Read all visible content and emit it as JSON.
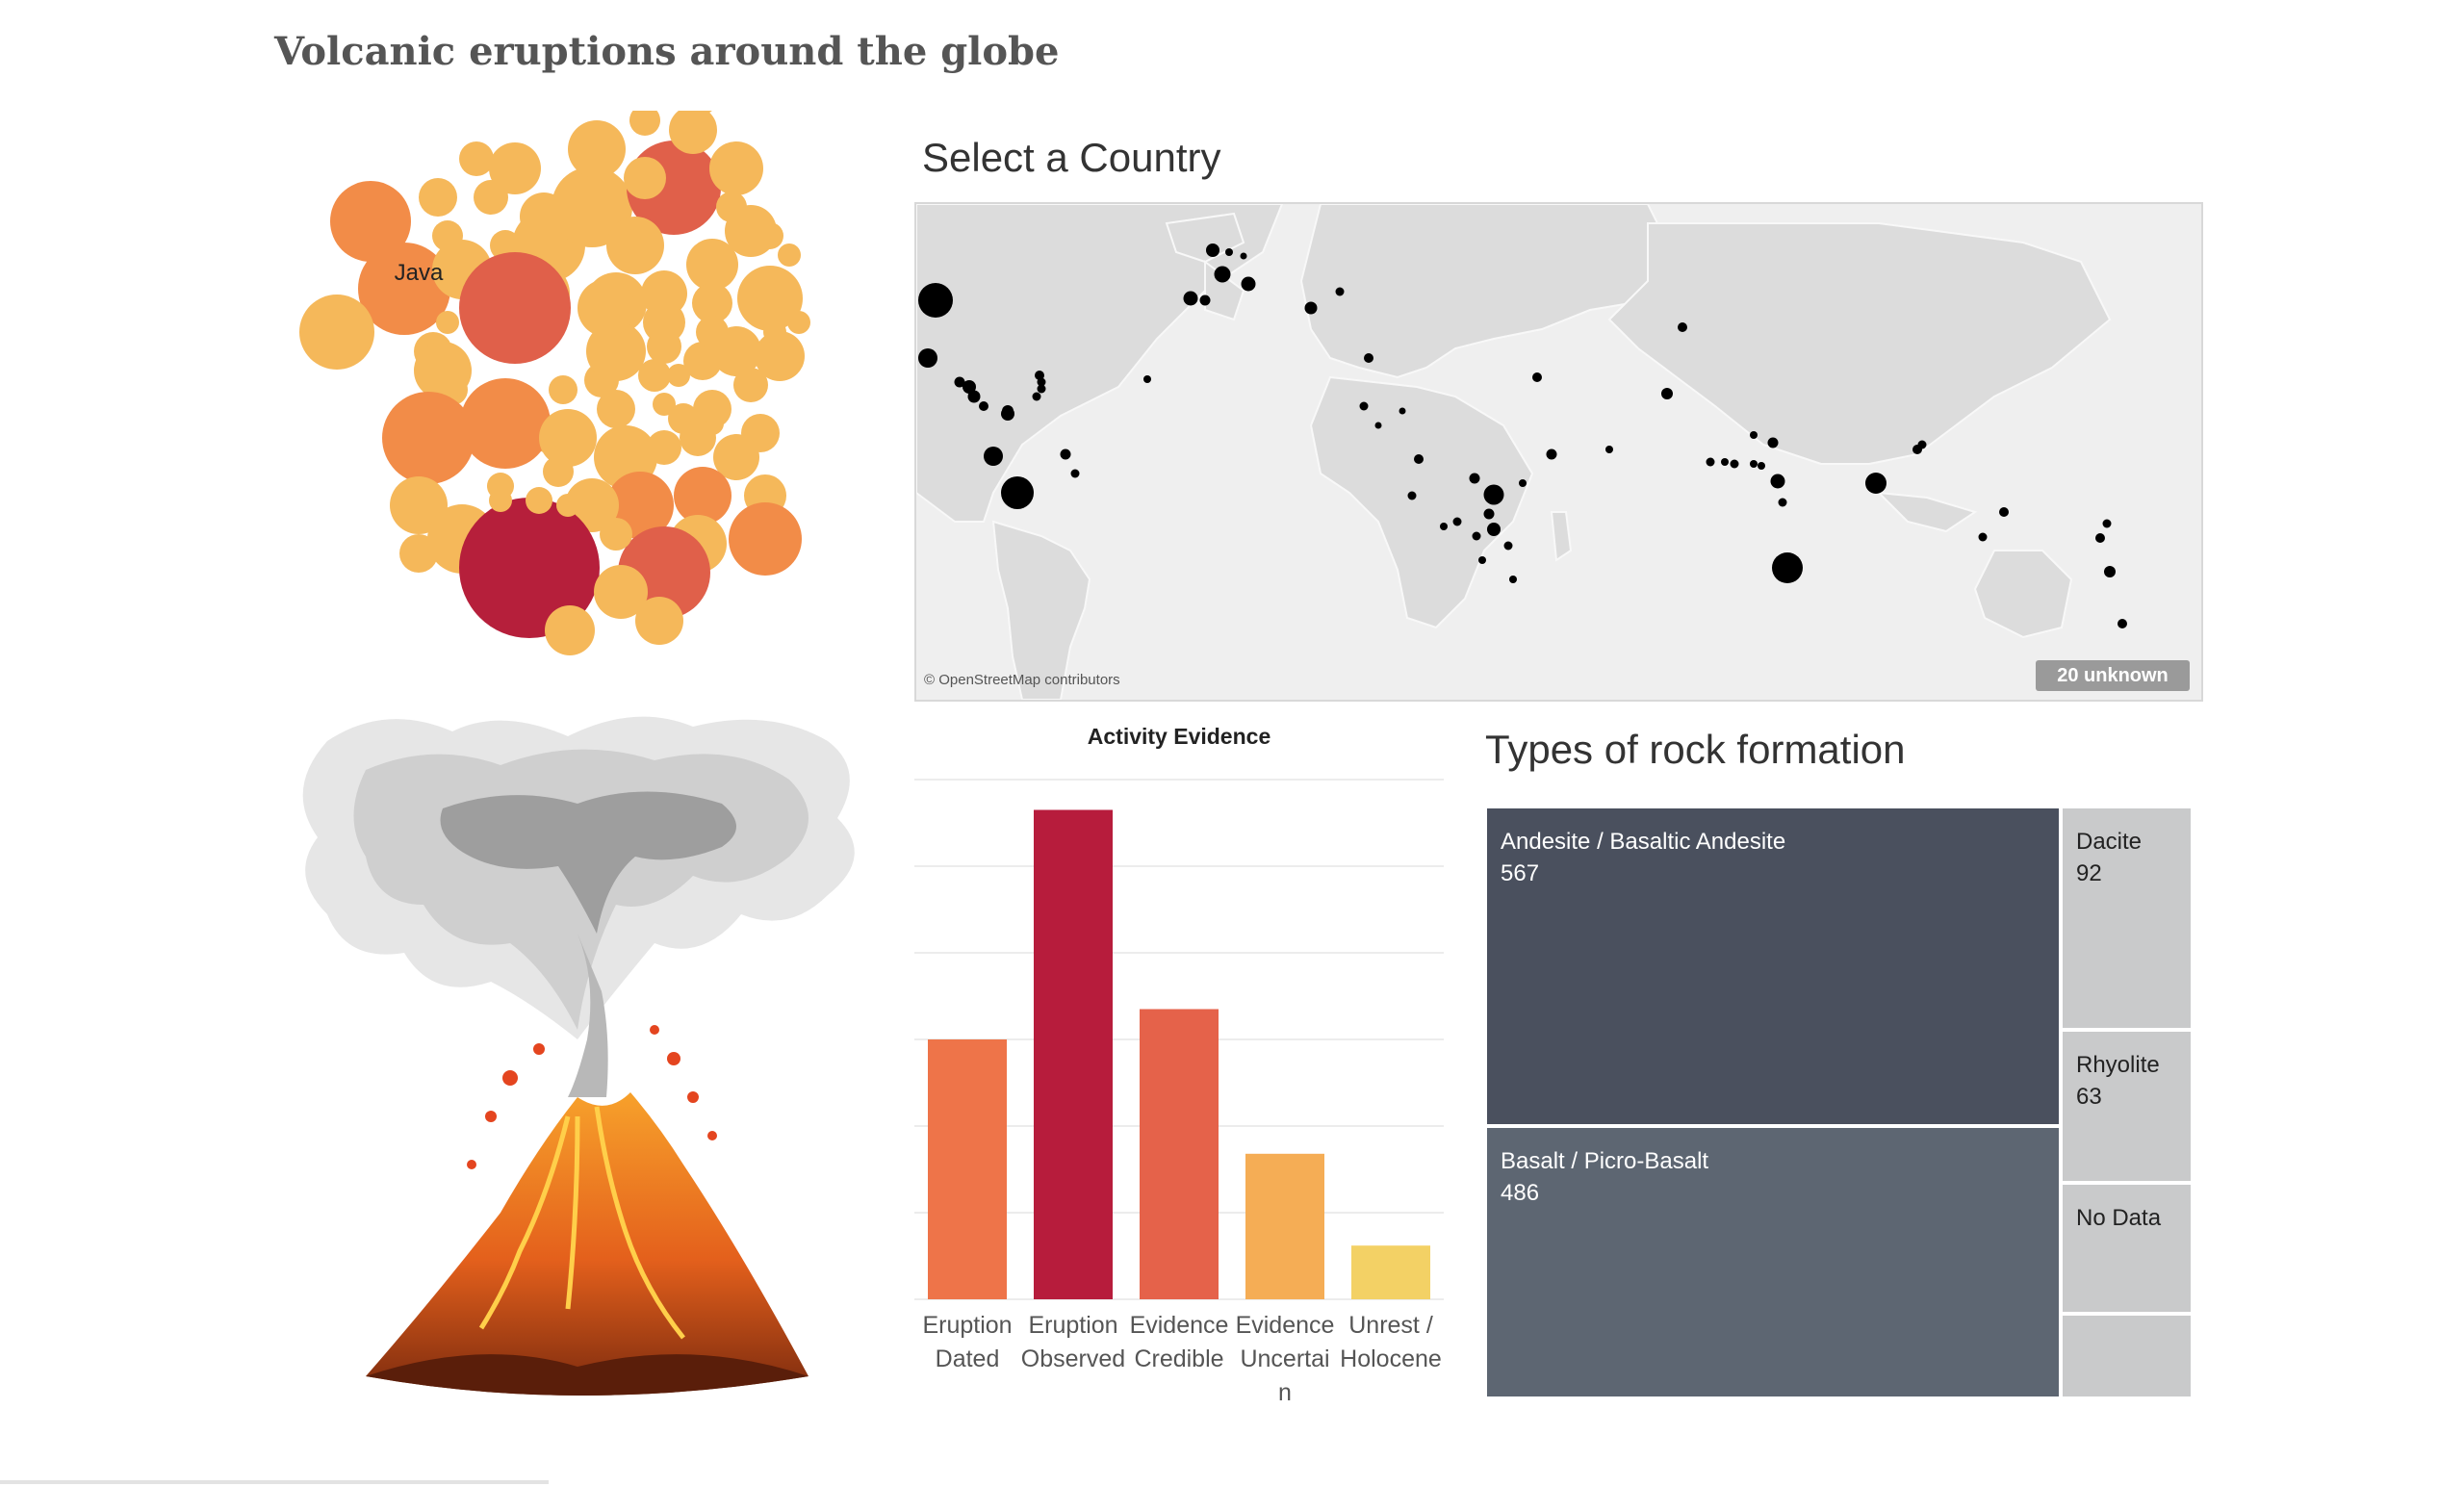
{
  "title": "Volcanic eruptions around the globe",
  "bubble_chart": {
    "labeled_bubble": "Java",
    "colors": [
      "#f5b85a",
      "#f28c48",
      "#e0604a",
      "#b61f3b"
    ]
  },
  "map": {
    "title": "Select a Country",
    "credit": "© OpenStreetMap contributors",
    "unknown_badge": "20 unknown",
    "land_color": "#dcdcdc",
    "dot_color": "#000000"
  },
  "chart_data": [
    {
      "type": "bar",
      "title": "Activity Evidence",
      "categories": [
        "Eruption Dated",
        "Eruption Observed",
        "Evidence Credible",
        "Evidence Uncertain",
        "Unrest / Holocene"
      ],
      "category_lines": [
        [
          "Eruption",
          "Dated"
        ],
        [
          "Eruption",
          "Observed"
        ],
        [
          "Evidence",
          "Credible"
        ],
        [
          "Evidence",
          "Uncertai",
          "n"
        ],
        [
          "Unrest /",
          "Holocene"
        ]
      ],
      "values": [
        300,
        565,
        335,
        168,
        62
      ],
      "colors": [
        "#ee7449",
        "#b71c3c",
        "#e5624a",
        "#f5ad55",
        "#f3d165"
      ],
      "ylim": [
        0,
        600
      ],
      "grid": true
    },
    {
      "type": "treemap",
      "title": "Types of rock formation",
      "items": [
        {
          "label": "Andesite / Basaltic Andesite",
          "value": 567,
          "value_text": "567",
          "color": "#4a505e"
        },
        {
          "label": "Basalt / Picro-Basalt",
          "value": 486,
          "value_text": "486",
          "color": "#5d6672"
        },
        {
          "label": "Dacite",
          "value": 92,
          "value_text": "92",
          "color": "#c9cacb"
        },
        {
          "label": "Rhyolite",
          "value": 63,
          "value_text": "63",
          "color": "#c9cacb"
        },
        {
          "label": "No Data",
          "value_text": "",
          "color": "#c9cacb"
        },
        {
          "label": "",
          "value_text": "",
          "color": "#c9cacb"
        }
      ]
    }
  ]
}
